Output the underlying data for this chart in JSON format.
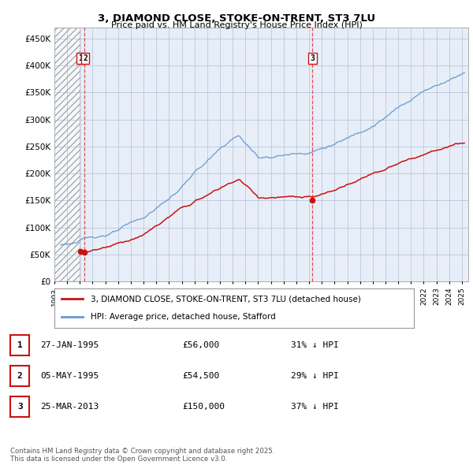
{
  "title": "3, DIAMOND CLOSE, STOKE-ON-TRENT, ST3 7LU",
  "subtitle": "Price paid vs. HM Land Registry's House Price Index (HPI)",
  "ylim": [
    0,
    470000
  ],
  "xlim_start": 1993.0,
  "xlim_end": 2025.5,
  "hpi_color": "#6699cc",
  "price_color": "#cc1111",
  "bg_color": "#e8eef8",
  "grid_color": "#b0c0d8",
  "legend_label_price": "3, DIAMOND CLOSE, STOKE-ON-TRENT, ST3 7LU (detached house)",
  "legend_label_hpi": "HPI: Average price, detached house, Stafford",
  "sale_dates": [
    1995.07,
    1995.37,
    2013.23
  ],
  "sale_prices": [
    56000,
    54500,
    150000
  ],
  "sale_labels": [
    "1",
    "2",
    "3"
  ],
  "vline_dates": [
    1995.37,
    2013.23
  ],
  "hatch_end": 1995.07,
  "table_rows": [
    [
      "1",
      "27-JAN-1995",
      "£56,000",
      "31% ↓ HPI"
    ],
    [
      "2",
      "05-MAY-1995",
      "£54,500",
      "29% ↓ HPI"
    ],
    [
      "3",
      "25-MAR-2013",
      "£150,000",
      "37% ↓ HPI"
    ]
  ],
  "footnote": "Contains HM Land Registry data © Crown copyright and database right 2025.\nThis data is licensed under the Open Government Licence v3.0.",
  "yticks": [
    0,
    50000,
    100000,
    150000,
    200000,
    250000,
    300000,
    350000,
    400000,
    450000
  ],
  "ytick_labels": [
    "£0",
    "£50K",
    "£100K",
    "£150K",
    "£200K",
    "£250K",
    "£300K",
    "£350K",
    "£400K",
    "£450K"
  ]
}
